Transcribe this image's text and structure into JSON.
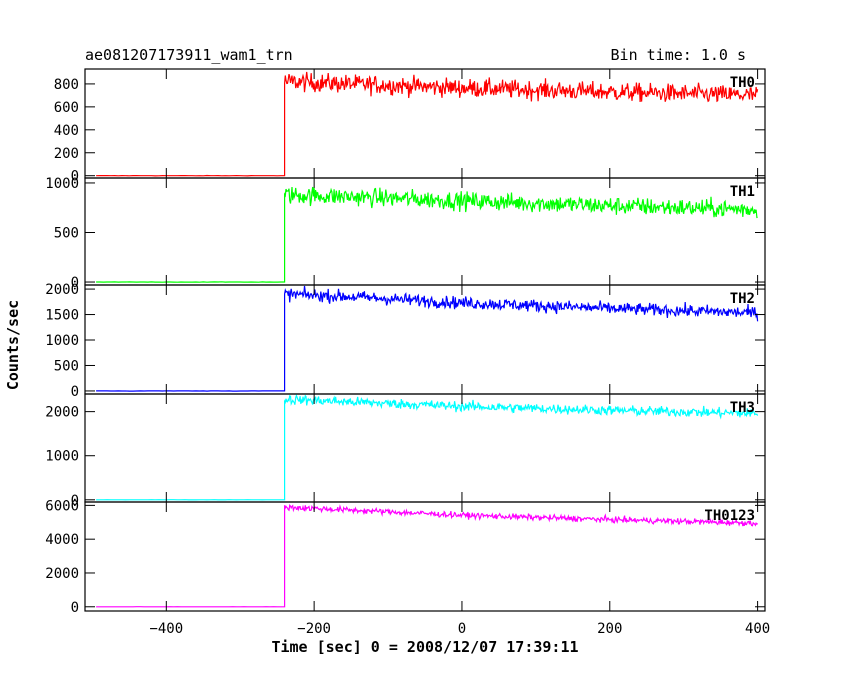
{
  "header": {
    "title": "ae081207173911_wam1_trn",
    "bin_time": "Bin time: 1.0 s"
  },
  "chart_data": {
    "type": "line",
    "xlabel": "Time [sec] 0 = 2008/12/07 17:39:11",
    "ylabel": "Counts/sec",
    "xlim": [
      -510,
      410
    ],
    "x_ticks": [
      -400,
      -200,
      0,
      200,
      400
    ],
    "x_tick_labels": [
      "−400",
      "−200",
      "0",
      "200",
      "400"
    ],
    "x_start": -495,
    "x_end": 400,
    "onset_x": -240,
    "grid": false,
    "panels": [
      {
        "name": "TH0",
        "color": "#ff0000",
        "ylim": [
          -20,
          930
        ],
        "y_ticks": [
          0,
          200,
          400,
          600,
          800
        ],
        "y_tick_labels": [
          "0",
          "200",
          "400",
          "600",
          "800"
        ],
        "pre_onset_level": 0,
        "post_onset": [
          {
            "x": -240,
            "y": 820
          },
          {
            "x": -150,
            "y": 800
          },
          {
            "x": 0,
            "y": 765
          },
          {
            "x": 200,
            "y": 730
          },
          {
            "x": 400,
            "y": 700
          }
        ],
        "noise": 40
      },
      {
        "name": "TH1",
        "color": "#00ff00",
        "ylim": [
          -30,
          1050
        ],
        "y_ticks": [
          0,
          500,
          1000
        ],
        "y_tick_labels": [
          "0",
          "500",
          "1000"
        ],
        "pre_onset_level": 0,
        "post_onset": [
          {
            "x": -240,
            "y": 880
          },
          {
            "x": -150,
            "y": 860
          },
          {
            "x": 0,
            "y": 820
          },
          {
            "x": 200,
            "y": 770
          },
          {
            "x": 400,
            "y": 730
          }
        ],
        "noise": 45
      },
      {
        "name": "TH2",
        "color": "#0000ff",
        "ylim": [
          -60,
          2080
        ],
        "y_ticks": [
          0,
          500,
          1000,
          1500,
          2000
        ],
        "y_tick_labels": [
          "0",
          "500",
          "1000",
          "1500",
          "2000"
        ],
        "pre_onset_level": 0,
        "post_onset": [
          {
            "x": -240,
            "y": 1900
          },
          {
            "x": -150,
            "y": 1850
          },
          {
            "x": 0,
            "y": 1730
          },
          {
            "x": 200,
            "y": 1620
          },
          {
            "x": 400,
            "y": 1530
          }
        ],
        "noise": 60
      },
      {
        "name": "TH3",
        "color": "#00ffff",
        "ylim": [
          -50,
          2400
        ],
        "y_ticks": [
          0,
          1000,
          2000
        ],
        "y_tick_labels": [
          "0",
          "1000",
          "2000"
        ],
        "pre_onset_level": 0,
        "post_onset": [
          {
            "x": -240,
            "y": 2280
          },
          {
            "x": -150,
            "y": 2220
          },
          {
            "x": 0,
            "y": 2120
          },
          {
            "x": 200,
            "y": 2030
          },
          {
            "x": 400,
            "y": 1960
          }
        ],
        "noise": 55
      },
      {
        "name": "TH0123",
        "color": "#ff00ff",
        "ylim": [
          -250,
          6200
        ],
        "y_ticks": [
          0,
          2000,
          4000,
          6000
        ],
        "y_tick_labels": [
          "0",
          "2000",
          "4000",
          "6000"
        ],
        "pre_onset_level": 0,
        "post_onset": [
          {
            "x": -240,
            "y": 5900
          },
          {
            "x": -150,
            "y": 5720
          },
          {
            "x": 0,
            "y": 5420
          },
          {
            "x": 200,
            "y": 5160
          },
          {
            "x": 400,
            "y": 4950
          }
        ],
        "noise": 85
      }
    ]
  }
}
